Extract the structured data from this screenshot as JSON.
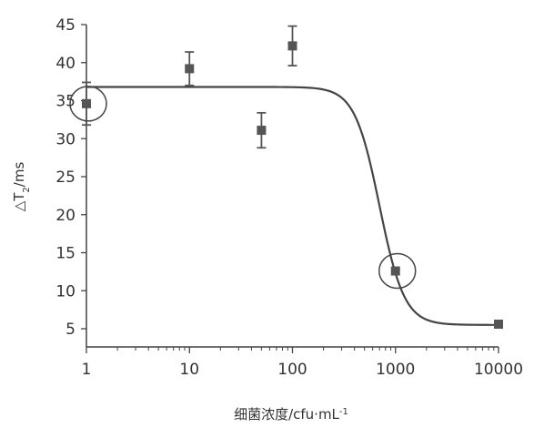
{
  "chart_data": {
    "type": "scatter",
    "title": "",
    "xlabel": "细菌浓度/cfu·mL",
    "xlabel_sup": "-1",
    "ylabel_prefix": "△T",
    "ylabel_sub": "2",
    "ylabel_suffix": "/ms",
    "x_scale": "log",
    "xlim": [
      1,
      10000
    ],
    "ylim": [
      3,
      45
    ],
    "x_ticks": [
      {
        "value": 1,
        "label": "1"
      },
      {
        "value": 10,
        "label": "10"
      },
      {
        "value": 100,
        "label": "100"
      },
      {
        "value": 1000,
        "label": "1000"
      },
      {
        "value": 10000,
        "label": "10000"
      }
    ],
    "y_ticks": [
      {
        "value": 5,
        "label": "5"
      },
      {
        "value": 10,
        "label": "10"
      },
      {
        "value": 15,
        "label": "15"
      },
      {
        "value": 20,
        "label": "20"
      },
      {
        "value": 25,
        "label": "25"
      },
      {
        "value": 30,
        "label": "30"
      },
      {
        "value": 35,
        "label": "35"
      },
      {
        "value": 40,
        "label": "40"
      },
      {
        "value": 45,
        "label": "45"
      }
    ],
    "points": [
      {
        "x": 1,
        "y": 34.6,
        "err": 2.8,
        "circled": true
      },
      {
        "x": 10,
        "y": 39.2,
        "err": 2.2,
        "circled": false
      },
      {
        "x": 50,
        "y": 31.1,
        "err": 2.3,
        "circled": false
      },
      {
        "x": 100,
        "y": 42.2,
        "err": 2.6,
        "circled": false
      },
      {
        "x": 1000,
        "y": 12.6,
        "err": 0,
        "circled": true
      },
      {
        "x": 10000,
        "y": 5.6,
        "err": 0,
        "circled": false
      }
    ],
    "fit_curve": {
      "top": 36.8,
      "bottom": 5.5,
      "x50": 700,
      "slope": 3.6
    },
    "colors": {
      "marker": "#555555",
      "curve": "#444444",
      "axis": "#444444"
    }
  }
}
